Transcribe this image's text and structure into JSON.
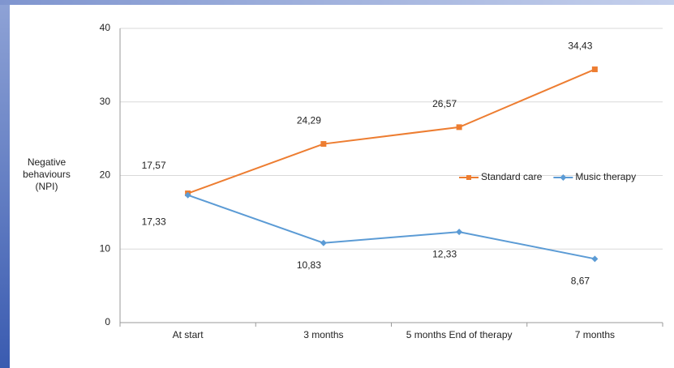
{
  "chart_data": {
    "type": "line",
    "y_label": "Negative behaviours (NPI)",
    "categories": [
      "At start",
      "3 months",
      "5 months End of therapy",
      "7 months"
    ],
    "series": [
      {
        "name": "Standard care",
        "color": "#ed7d31",
        "values": [
          17.57,
          24.29,
          26.57,
          34.43
        ],
        "value_labels": [
          "17,57",
          "24,29",
          "26,57",
          "34,43"
        ]
      },
      {
        "name": "Music therapy",
        "color": "#5b9bd5",
        "values": [
          17.33,
          10.83,
          12.33,
          8.67
        ],
        "value_labels": [
          "17,33",
          "10,83",
          "12,33",
          "8,67"
        ]
      }
    ],
    "ylim": [
      0,
      40
    ],
    "yticks": [
      0,
      10,
      20,
      30,
      40
    ],
    "grid": true,
    "legend": "right"
  }
}
